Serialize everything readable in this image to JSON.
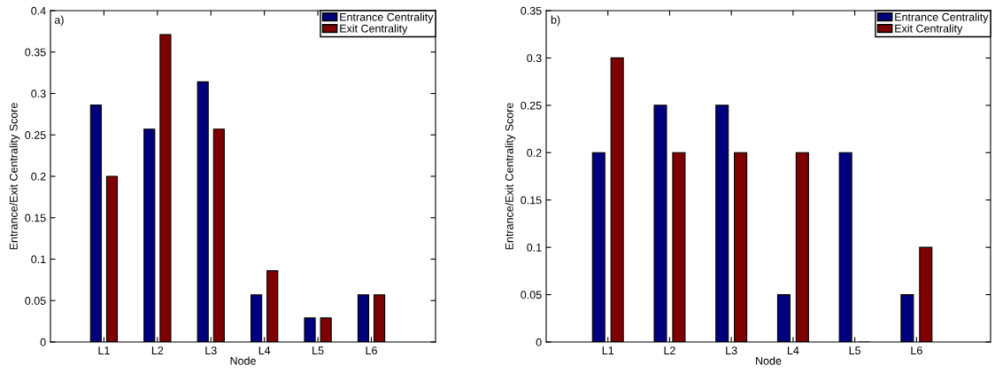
{
  "chart_data": [
    {
      "type": "bar",
      "categories": [
        "L1",
        "L2",
        "L3",
        "L4",
        "L5",
        "L6"
      ],
      "xlabel": "Node",
      "ylabel": "Entrance/Exit Centrality Score",
      "annotations": [
        "a)"
      ],
      "series": [
        {
          "name": "Entrance Centrality",
          "color": "#00007f",
          "values": [
            0.286,
            0.257,
            0.314,
            0.057,
            0.029,
            0.057
          ]
        },
        {
          "name": "Exit Centrality",
          "color": "#7f0000",
          "values": [
            0.2,
            0.371,
            0.257,
            0.086,
            0.029,
            0.057
          ]
        }
      ],
      "ylim": [
        0,
        0.4
      ],
      "yticks": [
        0,
        0.05,
        0.1,
        0.15,
        0.2,
        0.25,
        0.3,
        0.35,
        0.4
      ],
      "grid": false,
      "legend": "top right"
    },
    {
      "type": "bar",
      "categories": [
        "L1",
        "L2",
        "L3",
        "L4",
        "L5",
        "L6"
      ],
      "xlabel": "Node",
      "ylabel": "Entrance/Exit Centrality Score",
      "annotations": [
        "b)"
      ],
      "series": [
        {
          "name": "Entrance Centrality",
          "color": "#00007f",
          "values": [
            0.2,
            0.25,
            0.25,
            0.05,
            0.2,
            0.05
          ]
        },
        {
          "name": "Exit Centrality",
          "color": "#7f0000",
          "values": [
            0.3,
            0.2,
            0.2,
            0.2,
            0,
            0.1
          ]
        }
      ],
      "ylim": [
        0,
        0.35
      ],
      "yticks": [
        0,
        0.05,
        0.1,
        0.15,
        0.2,
        0.25,
        0.3,
        0.35
      ],
      "grid": false,
      "legend": "top right"
    }
  ]
}
